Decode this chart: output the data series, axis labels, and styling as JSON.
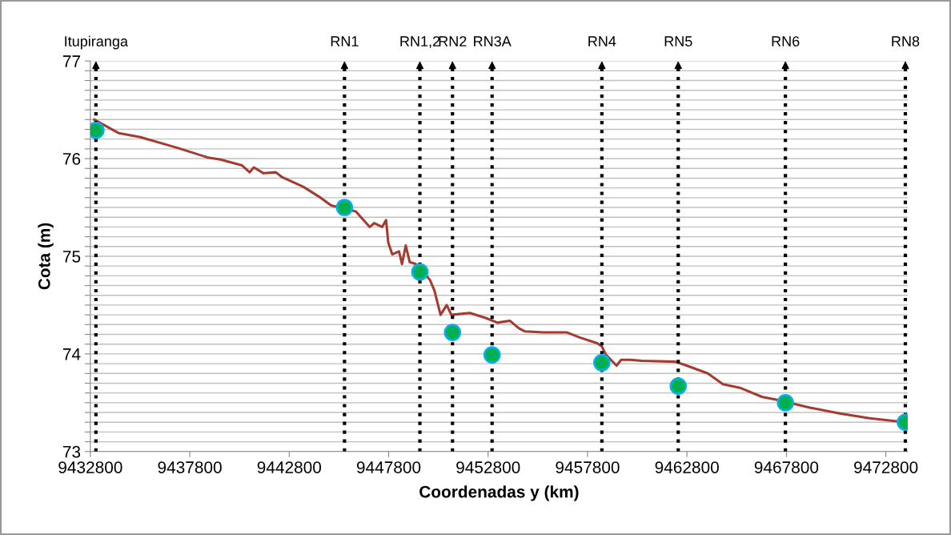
{
  "chart_data": {
    "type": "line",
    "xlabel": "Coordenadas y (km)",
    "ylabel": "Cota (m)",
    "xlim": [
      9432800,
      9473900
    ],
    "xticks": [
      9432800,
      9437800,
      9442800,
      9447800,
      9452800,
      9457800,
      9462800,
      9467800,
      9472800
    ],
    "ylim": [
      73,
      77
    ],
    "yticks": [
      73,
      {
        "value": 73.1,
        "label": null
      },
      {
        "value": 73.2,
        "label": null
      },
      {
        "value": 73.3,
        "label": null
      },
      {
        "value": 73.4,
        "label": null
      },
      {
        "value": 73.5,
        "label": null
      },
      {
        "value": 73.6,
        "label": null
      },
      {
        "value": 73.7,
        "label": null
      },
      {
        "value": 73.8,
        "label": null
      },
      {
        "value": 73.9,
        "label": null
      },
      74,
      {
        "value": 74.1,
        "label": null
      },
      {
        "value": 74.2,
        "label": null
      },
      {
        "value": 74.3,
        "label": null
      },
      {
        "value": 74.4,
        "label": null
      },
      {
        "value": 74.5,
        "label": null
      },
      {
        "value": 74.6,
        "label": null
      },
      {
        "value": 74.7,
        "label": null
      },
      {
        "value": 74.8,
        "label": null
      },
      {
        "value": 74.9,
        "label": null
      },
      75,
      {
        "value": 75.1,
        "label": null
      },
      {
        "value": 75.2,
        "label": null
      },
      {
        "value": 75.3,
        "label": null
      },
      {
        "value": 75.4,
        "label": null
      },
      {
        "value": 75.5,
        "label": null
      },
      {
        "value": 75.6,
        "label": null
      },
      {
        "value": 75.7,
        "label": null
      },
      {
        "value": 75.8,
        "label": null
      },
      {
        "value": 75.9,
        "label": null
      },
      76,
      {
        "value": 76.1,
        "label": null
      },
      {
        "value": 76.2,
        "label": null
      },
      {
        "value": 76.3,
        "label": null
      },
      {
        "value": 76.4,
        "label": null
      },
      {
        "value": 76.5,
        "label": null
      },
      {
        "value": 76.6,
        "label": null
      },
      {
        "value": 76.7,
        "label": null
      },
      {
        "value": 76.8,
        "label": null
      },
      {
        "value": 76.9,
        "label": null
      },
      77
    ],
    "grid": "y",
    "legend": false,
    "series": [
      {
        "color": "#a33b30",
        "marker": "none",
        "line_style": "solid",
        "x": [
          9433000,
          9434240,
          9435320,
          9437180,
          9438730,
          9439350,
          9440430,
          9440810,
          9441020,
          9441510,
          9442130,
          9442440,
          9443520,
          9444300,
          9444910,
          9446150,
          9446850,
          9447080,
          9447470,
          9447670,
          9447780,
          9447980,
          9448320,
          9448470,
          9448660,
          9448860,
          9449170,
          9449870,
          9450100,
          9450410,
          9450720,
          9450950,
          9451880,
          9452650,
          9453270,
          9453890,
          9454360,
          9454660,
          9455570,
          9456770,
          9457380,
          9458280,
          9458510,
          9458730,
          9459260,
          9459490,
          9459940,
          9460540,
          9462200,
          9462650,
          9463850,
          9464610,
          9465510,
          9466570,
          9467330,
          9468980,
          9470480,
          9471990,
          9473380
        ],
        "values": [
          76.4,
          76.26,
          76.22,
          76.11,
          76.01,
          75.99,
          75.93,
          75.86,
          75.91,
          75.85,
          75.86,
          75.81,
          75.71,
          75.61,
          75.52,
          75.46,
          75.3,
          75.34,
          75.3,
          75.37,
          75.14,
          75.02,
          75.05,
          74.92,
          75.11,
          74.94,
          74.92,
          74.76,
          74.65,
          74.4,
          74.5,
          74.4,
          74.42,
          74.37,
          74.32,
          74.34,
          74.26,
          74.23,
          74.22,
          74.22,
          74.17,
          74.11,
          74.08,
          73.99,
          73.88,
          73.94,
          73.94,
          73.93,
          73.92,
          73.89,
          73.8,
          73.69,
          73.65,
          73.56,
          73.53,
          73.45,
          73.39,
          73.34,
          73.31
        ]
      },
      {
        "type": "scatter",
        "color": "#00b050",
        "marker": "circle",
        "x": [
          9433080,
          9445580,
          9449370,
          9451010,
          9453000,
          9458520,
          9462360,
          9467750,
          9473780
        ],
        "values": [
          76.29,
          75.5,
          74.84,
          74.22,
          73.99,
          73.91,
          73.67,
          73.5,
          73.3
        ]
      }
    ],
    "ref_lines": [
      {
        "axis": "x",
        "value": 9433080,
        "label": "Itupiranga",
        "color": "#000000",
        "line_style": "dotted"
      },
      {
        "axis": "x",
        "value": 9445580,
        "label": "RN1",
        "color": "#000000",
        "line_style": "dotted"
      },
      {
        "axis": "x",
        "value": 9449370,
        "label": "RN1,2",
        "color": "#000000",
        "line_style": "dotted"
      },
      {
        "axis": "x",
        "value": 9451010,
        "label": "RN2",
        "color": "#000000",
        "line_style": "dotted"
      },
      {
        "axis": "x",
        "value": 9453000,
        "label": "RN3A",
        "color": "#000000",
        "line_style": "dotted"
      },
      {
        "axis": "x",
        "value": 9458520,
        "label": "RN4",
        "color": "#000000",
        "line_style": "dotted"
      },
      {
        "axis": "x",
        "value": 9462360,
        "label": "RN5",
        "color": "#000000",
        "line_style": "dotted"
      },
      {
        "axis": "x",
        "value": 9467750,
        "label": "RN6",
        "color": "#000000",
        "line_style": "dotted"
      },
      {
        "axis": "x",
        "value": 9473780,
        "label": "RN8",
        "color": "#000000",
        "line_style": "dotted"
      }
    ]
  }
}
